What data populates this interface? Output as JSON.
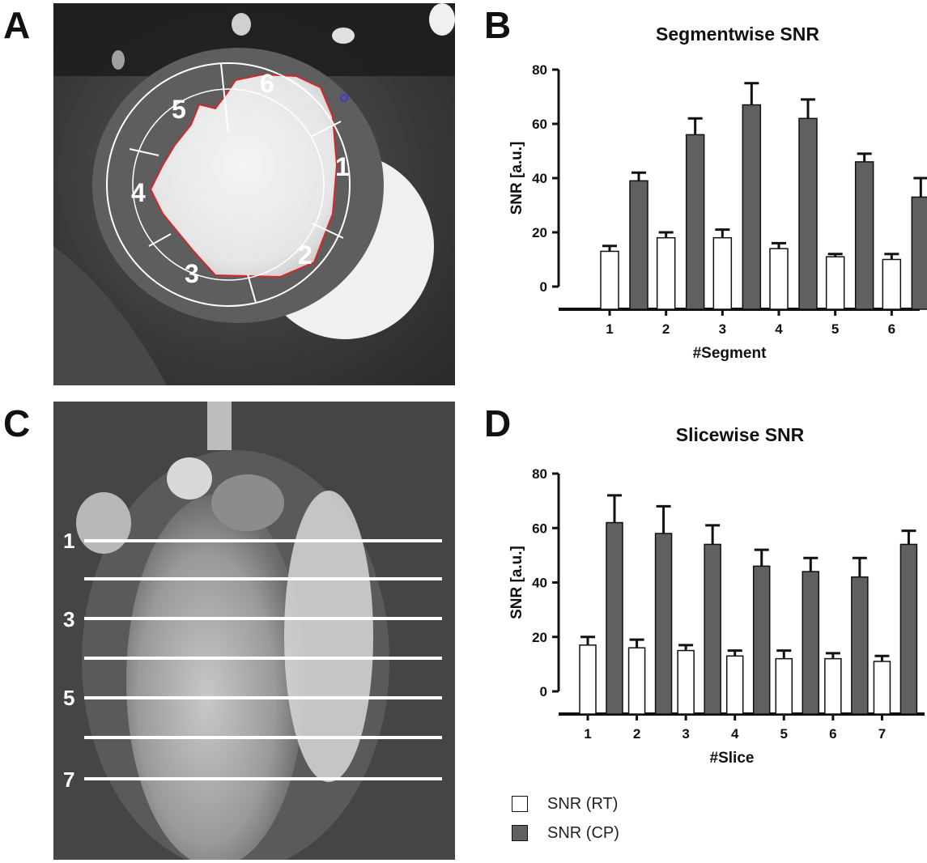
{
  "panels": {
    "a": "A",
    "b": "B",
    "c": "C",
    "d": "D"
  },
  "colors": {
    "rt_fill": "#ffffff",
    "cp_fill": "#606060",
    "contour": "#d6262b",
    "ring": "#ffffff",
    "marker": "#3a3ae0"
  },
  "panel_a": {
    "segment_labels": [
      "1",
      "2",
      "3",
      "4",
      "5",
      "6"
    ]
  },
  "panel_c": {
    "slice_labels": [
      "1",
      "3",
      "5",
      "7"
    ]
  },
  "legend": [
    {
      "label": "SNR (RT)",
      "color": "#ffffff"
    },
    {
      "label": "SNR (CP)",
      "color": "#606060"
    }
  ],
  "chart_data": [
    {
      "type": "bar",
      "title": "Segmentwise SNR",
      "xlabel": "#Segment",
      "ylabel": "SNR [a.u.]",
      "ylim": [
        0,
        80
      ],
      "yticks": [
        0,
        20,
        40,
        60,
        80
      ],
      "categories": [
        "1",
        "2",
        "3",
        "4",
        "5",
        "6"
      ],
      "series": [
        {
          "name": "SNR (RT)",
          "values": [
            13,
            18,
            18,
            14,
            11,
            10
          ],
          "errors": [
            2,
            2,
            3,
            2,
            1,
            2
          ]
        },
        {
          "name": "SNR (CP)",
          "values": [
            39,
            56,
            67,
            62,
            46,
            33
          ],
          "errors": [
            3,
            6,
            8,
            7,
            3,
            7
          ]
        }
      ]
    },
    {
      "type": "bar",
      "title": "Slicewise SNR",
      "xlabel": "#Slice",
      "ylabel": "SNR [a.u.]",
      "ylim": [
        0,
        80
      ],
      "yticks": [
        0,
        20,
        40,
        60,
        80
      ],
      "categories": [
        "1",
        "2",
        "3",
        "4",
        "5",
        "6",
        "7"
      ],
      "series": [
        {
          "name": "SNR (RT)",
          "values": [
            17,
            16,
            15,
            13,
            12,
            12,
            11
          ],
          "errors": [
            3,
            3,
            2,
            2,
            3,
            2,
            2
          ]
        },
        {
          "name": "SNR (CP)",
          "values": [
            62,
            58,
            54,
            46,
            44,
            42,
            54
          ],
          "errors": [
            10,
            10,
            7,
            6,
            5,
            7,
            5
          ]
        }
      ]
    }
  ]
}
